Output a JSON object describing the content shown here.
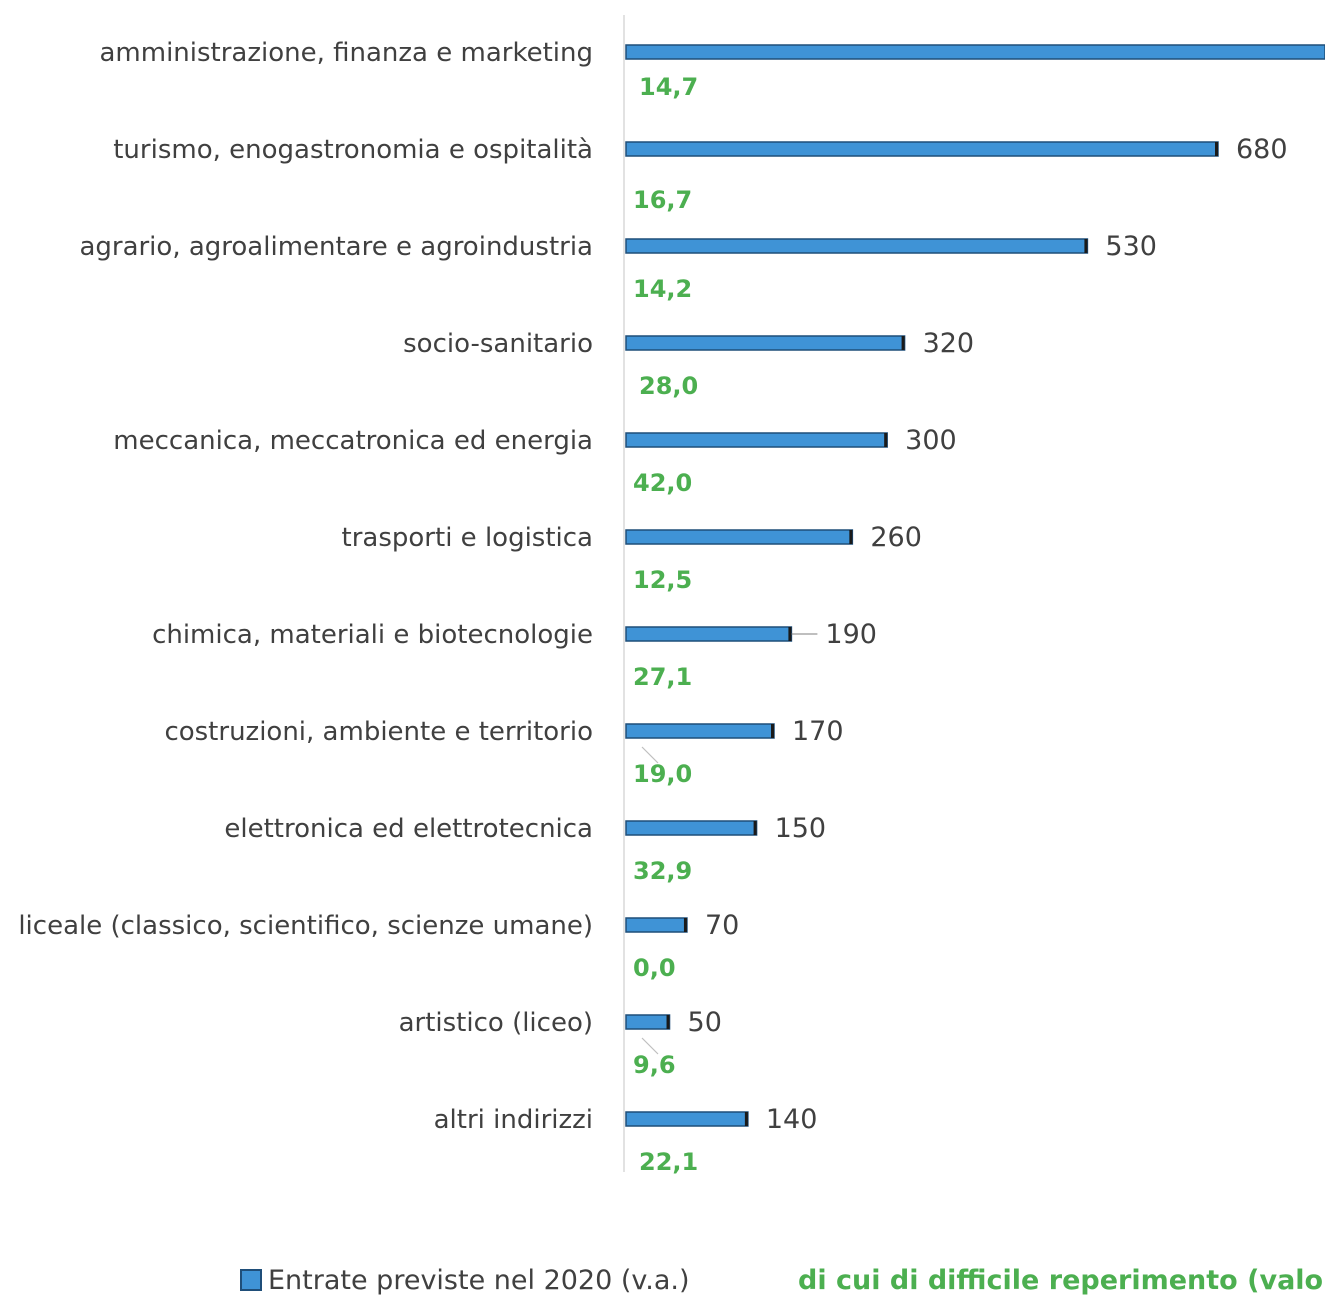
{
  "chart_data": {
    "type": "bar",
    "orientation": "horizontal",
    "categories": [
      "amministrazione, finanza e marketing",
      "turismo, enogastronomia e ospitalità",
      "agrario, agroalimentare e agroindustria",
      "socio-sanitario",
      "meccanica, meccatronica ed energia",
      "trasporti e logistica",
      "chimica, materiali e biotecnologie",
      "costruzioni, ambiente e territorio",
      "elettronica ed elettrotecnica",
      "liceale (classico, scientifico, scienze umane)",
      "artistico (liceo)",
      "altri indirizzi"
    ],
    "series": [
      {
        "name": "Entrate previste nel 2020 (v.a.)",
        "values": [
          820,
          680,
          530,
          320,
          300,
          260,
          190,
          170,
          150,
          70,
          50,
          140
        ],
        "labels": [
          "",
          "680",
          "530",
          "320",
          "300",
          "260",
          "190",
          "170",
          "150",
          "70",
          "50",
          "140"
        ],
        "color": "#3f93d6"
      },
      {
        "name": "di cui di difficile reperimento (valori %",
        "values": [
          14.7,
          16.7,
          14.2,
          28.0,
          42.0,
          12.5,
          27.1,
          19.0,
          32.9,
          0.0,
          9.6,
          22.1
        ],
        "labels": [
          "14,7",
          "16,7",
          "14,2",
          "28,0",
          "42,0",
          "12,5",
          "27,1",
          "19,0",
          "32,9",
          "0,0",
          "9,6",
          "22,1"
        ],
        "color": "#4caf50"
      }
    ],
    "legend_position": "bottom",
    "grid": false
  }
}
